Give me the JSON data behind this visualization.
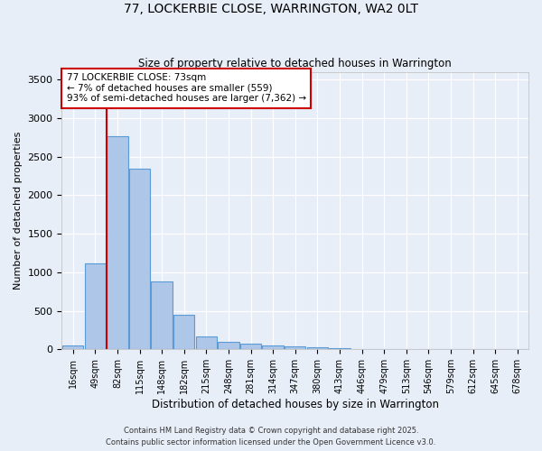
{
  "title1": "77, LOCKERBIE CLOSE, WARRINGTON, WA2 0LT",
  "title2": "Size of property relative to detached houses in Warrington",
  "xlabel": "Distribution of detached houses by size in Warrington",
  "ylabel": "Number of detached properties",
  "bins": [
    "16sqm",
    "49sqm",
    "82sqm",
    "115sqm",
    "148sqm",
    "182sqm",
    "215sqm",
    "248sqm",
    "281sqm",
    "314sqm",
    "347sqm",
    "380sqm",
    "413sqm",
    "446sqm",
    "479sqm",
    "513sqm",
    "546sqm",
    "579sqm",
    "612sqm",
    "645sqm",
    "678sqm"
  ],
  "values": [
    50,
    1120,
    2760,
    2340,
    880,
    450,
    165,
    95,
    70,
    55,
    40,
    25,
    15,
    5,
    3,
    2,
    1,
    1,
    0,
    0,
    0
  ],
  "bar_color": "#aec6e8",
  "bar_edge_color": "#5b9bd5",
  "bg_color": "#e8eef8",
  "grid_color": "#ffffff",
  "vline_color": "#cc0000",
  "annotation_text": "77 LOCKERBIE CLOSE: 73sqm\n← 7% of detached houses are smaller (559)\n93% of semi-detached houses are larger (7,362) →",
  "annotation_box_color": "#ffffff",
  "annotation_box_edge": "#cc0000",
  "ylim": [
    0,
    3600
  ],
  "yticks": [
    0,
    500,
    1000,
    1500,
    2000,
    2500,
    3000,
    3500
  ],
  "footer1": "Contains HM Land Registry data © Crown copyright and database right 2025.",
  "footer2": "Contains public sector information licensed under the Open Government Licence v3.0."
}
